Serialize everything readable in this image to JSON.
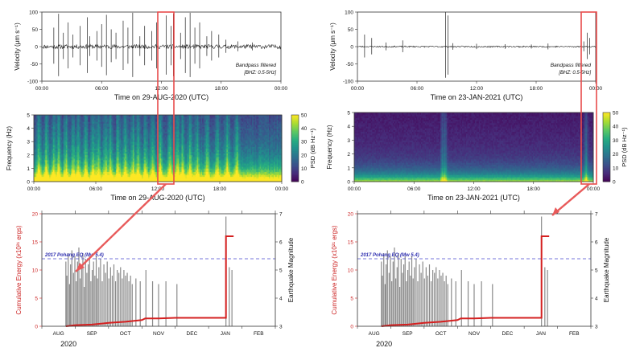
{
  "figure": {
    "accent": "#e85a5a",
    "annotation_color": "#e84b4b"
  },
  "chart_data": [
    {
      "type": "line",
      "panel": "left-seismogram",
      "ylabel": "Velocity (μm s⁻¹)",
      "xlabel": "Time on 29-AUG-2020 (UTC)",
      "ylim": [
        -100,
        100
      ],
      "yticks": [
        "100",
        "50",
        "0",
        "-50",
        "-100"
      ],
      "xticks": [
        "00:00",
        "06:00",
        "12:00",
        "18:00",
        "00:00"
      ],
      "filter_label": [
        "Bandpass filtered",
        "[BHZ: 0.5-5Hz]"
      ],
      "series": [
        {
          "name": "BHZ velocity",
          "base_amplitude": 6,
          "spikes": [
            [
              0.05,
              55
            ],
            [
              0.07,
              95
            ],
            [
              0.09,
              40
            ],
            [
              0.11,
              70
            ],
            [
              0.13,
              35
            ],
            [
              0.16,
              60
            ],
            [
              0.19,
              85
            ],
            [
              0.2,
              30
            ],
            [
              0.23,
              45
            ],
            [
              0.25,
              65
            ],
            [
              0.27,
              92
            ],
            [
              0.29,
              50
            ],
            [
              0.31,
              40
            ],
            [
              0.34,
              75
            ],
            [
              0.36,
              55
            ],
            [
              0.38,
              98
            ],
            [
              0.41,
              30
            ],
            [
              0.43,
              60
            ],
            [
              0.46,
              45
            ],
            [
              0.48,
              70
            ],
            [
              0.52,
              90
            ],
            [
              0.54,
              60
            ],
            [
              0.55,
              95
            ],
            [
              0.58,
              40
            ],
            [
              0.6,
              85
            ],
            [
              0.62,
              98
            ],
            [
              0.64,
              55
            ],
            [
              0.66,
              70
            ],
            [
              0.69,
              30
            ],
            [
              0.71,
              45
            ],
            [
              0.74,
              35
            ],
            [
              0.77,
              20
            ],
            [
              0.82,
              15
            ],
            [
              0.88,
              12
            ]
          ]
        }
      ]
    },
    {
      "type": "heatmap",
      "panel": "left-spectrogram",
      "ylabel": "Frequency (Hz)",
      "xlabel": "Time on 29-AUG-2020 (UTC)",
      "ylim": [
        0,
        5
      ],
      "yticks": [
        "5",
        "4",
        "3",
        "2",
        "1",
        "0"
      ],
      "xticks": [
        "00:00",
        "06:00",
        "12:00",
        "18:00",
        "00:00"
      ],
      "colorbar": {
        "label": "PSD (dB Hz⁻¹)",
        "range": [
          0,
          50
        ],
        "ticks": [
          "50",
          "40",
          "30",
          "20",
          "10",
          "0"
        ]
      },
      "bright_bands": [
        0.02,
        0.05,
        0.08,
        0.1,
        0.13,
        0.16,
        0.18,
        0.21,
        0.24,
        0.26,
        0.29,
        0.31,
        0.34,
        0.37,
        0.4,
        0.42,
        0.45,
        0.48,
        0.51,
        0.55,
        0.58,
        0.6,
        0.63,
        0.66,
        0.7,
        0.74,
        0.78,
        0.82
      ]
    },
    {
      "type": "bar",
      "panel": "left-energy",
      "xlabel": "2020",
      "ylabel": "Cumulative Energy (x10²¹ ergs)",
      "y2label": "Earthquake Magnitude",
      "ylim": [
        0,
        20
      ],
      "yticks": [
        "20",
        "15",
        "10",
        "5",
        "0"
      ],
      "y2lim": [
        3,
        7
      ],
      "y2ticks": [
        "7",
        "6",
        "5",
        "4",
        "3"
      ],
      "xlim": [
        0,
        7
      ],
      "months": [
        "AUG",
        "SEP",
        "OCT",
        "NOV",
        "DEC",
        "JAN",
        "FEB"
      ],
      "reference_line": {
        "label": "2017 Pohang EQ (Mw 5.4)",
        "magnitude": 5.4
      },
      "magnitude_bars": [
        [
          0.72,
          5.3
        ],
        [
          0.75,
          4.8
        ],
        [
          0.79,
          5.6
        ],
        [
          0.83,
          4.5
        ],
        [
          0.86,
          5.2
        ],
        [
          0.9,
          5.7
        ],
        [
          0.95,
          4.9
        ],
        [
          0.99,
          5.5
        ],
        [
          1.03,
          4.6
        ],
        [
          1.07,
          5.3
        ],
        [
          1.11,
          5.8
        ],
        [
          1.15,
          4.7
        ],
        [
          1.19,
          5.1
        ],
        [
          1.23,
          5.6
        ],
        [
          1.27,
          4.4
        ],
        [
          1.31,
          5.4
        ],
        [
          1.35,
          4.9
        ],
        [
          1.39,
          5.2
        ],
        [
          1.43,
          5.5
        ],
        [
          1.47,
          4.6
        ],
        [
          1.51,
          5.0
        ],
        [
          1.55,
          5.3
        ],
        [
          1.59,
          4.8
        ],
        [
          1.63,
          5.5
        ],
        [
          1.67,
          4.7
        ],
        [
          1.71,
          5.1
        ],
        [
          1.76,
          5.4
        ],
        [
          1.81,
          4.6
        ],
        [
          1.86,
          5.2
        ],
        [
          1.91,
          4.9
        ],
        [
          1.96,
          5.3
        ],
        [
          2.01,
          4.7
        ],
        [
          2.06,
          5.1
        ],
        [
          2.11,
          4.8
        ],
        [
          2.16,
          5.2
        ],
        [
          2.21,
          4.6
        ],
        [
          2.26,
          5.0
        ],
        [
          2.31,
          4.9
        ],
        [
          2.36,
          5.1
        ],
        [
          2.41,
          4.7
        ],
        [
          2.46,
          5.0
        ],
        [
          2.51,
          4.8
        ],
        [
          2.56,
          4.9
        ],
        [
          2.61,
          4.6
        ],
        [
          2.66,
          4.8
        ],
        [
          2.71,
          4.5
        ],
        [
          2.82,
          4.7
        ],
        [
          2.95,
          4.6
        ],
        [
          3.12,
          5.0
        ],
        [
          3.32,
          4.6
        ],
        [
          3.5,
          4.5
        ],
        [
          3.72,
          4.6
        ],
        [
          4.05,
          4.5
        ],
        [
          5.52,
          6.9
        ],
        [
          5.62,
          5.1
        ],
        [
          5.7,
          5.0
        ]
      ],
      "cumulative_energy": [
        [
          0.72,
          0.0
        ],
        [
          1.0,
          0.2
        ],
        [
          1.5,
          0.3
        ],
        [
          2.0,
          0.6
        ],
        [
          2.5,
          0.8
        ],
        [
          3.0,
          1.1
        ],
        [
          3.1,
          1.4
        ],
        [
          3.5,
          1.4
        ],
        [
          4.0,
          1.5
        ],
        [
          5.3,
          1.5
        ],
        [
          5.52,
          1.5
        ],
        [
          5.52,
          16.0
        ],
        [
          5.75,
          16.0
        ]
      ]
    },
    {
      "type": "line",
      "panel": "right-seismogram",
      "ylabel": "Velocity (μm s⁻¹)",
      "xlabel": "Time on 23-JAN-2021 (UTC)",
      "ylim": [
        -100,
        100
      ],
      "yticks": [
        "100",
        "50",
        "0",
        "-50",
        "-100"
      ],
      "xticks": [
        "00:00",
        "06:00",
        "12:00",
        "18:00",
        "00:00"
      ],
      "filter_label": [
        "Bandpass filtered",
        "[BHZ: 0.5-5Hz]"
      ],
      "series": [
        {
          "name": "BHZ velocity",
          "base_amplitude": 2,
          "spikes": [
            [
              0.03,
              35
            ],
            [
              0.06,
              25
            ],
            [
              0.12,
              12
            ],
            [
              0.19,
              18
            ],
            [
              0.37,
              100
            ],
            [
              0.38,
              90
            ],
            [
              0.4,
              10
            ],
            [
              0.5,
              8
            ],
            [
              0.62,
              7
            ],
            [
              0.73,
              6
            ],
            [
              0.8,
              9
            ],
            [
              0.95,
              15
            ],
            [
              0.965,
              40
            ],
            [
              0.975,
              25
            ]
          ]
        }
      ]
    },
    {
      "type": "heatmap",
      "panel": "right-spectrogram",
      "ylabel": "Frequency (Hz)",
      "xlabel": "Time on 23-JAN-2021 (UTC)",
      "ylim": [
        0,
        5
      ],
      "yticks": [
        "5",
        "4",
        "3",
        "2",
        "1",
        "0"
      ],
      "xticks": [
        "00:00",
        "06:00",
        "12:00",
        "18:00",
        "00:00"
      ],
      "colorbar": {
        "label": "PSD (dB Hz⁻¹)",
        "range": [
          0,
          50
        ],
        "ticks": [
          "50",
          "40",
          "30",
          "20",
          "10",
          "0"
        ]
      },
      "bright_bands": [
        0.37,
        0.38,
        0.97
      ]
    },
    {
      "type": "bar",
      "panel": "right-energy",
      "xlabel": "2020",
      "ylabel": "Cumulative Energy (x10²¹ ergs)",
      "y2label": "Earthquake Magnitude",
      "ylim": [
        0,
        20
      ],
      "yticks": [
        "20",
        "15",
        "10",
        "5",
        "0"
      ],
      "y2lim": [
        3,
        7
      ],
      "y2ticks": [
        "7",
        "6",
        "5",
        "4",
        "3"
      ],
      "xlim": [
        0,
        7
      ],
      "months": [
        "AUG",
        "SEP",
        "OCT",
        "NOV",
        "DEC",
        "JAN",
        "FEB"
      ],
      "reference_line": {
        "label": "2017 Pohang EQ (Mw 5.4)",
        "magnitude": 5.4
      },
      "magnitude_bars": [
        [
          0.72,
          5.3
        ],
        [
          0.75,
          4.8
        ],
        [
          0.79,
          5.6
        ],
        [
          0.83,
          4.5
        ],
        [
          0.86,
          5.2
        ],
        [
          0.9,
          5.7
        ],
        [
          0.95,
          4.9
        ],
        [
          0.99,
          5.5
        ],
        [
          1.03,
          4.6
        ],
        [
          1.07,
          5.3
        ],
        [
          1.11,
          5.8
        ],
        [
          1.15,
          4.7
        ],
        [
          1.19,
          5.1
        ],
        [
          1.23,
          5.6
        ],
        [
          1.27,
          4.4
        ],
        [
          1.31,
          5.4
        ],
        [
          1.35,
          4.9
        ],
        [
          1.39,
          5.2
        ],
        [
          1.43,
          5.5
        ],
        [
          1.47,
          4.6
        ],
        [
          1.51,
          5.0
        ],
        [
          1.55,
          5.3
        ],
        [
          1.59,
          4.8
        ],
        [
          1.63,
          5.5
        ],
        [
          1.67,
          4.7
        ],
        [
          1.71,
          5.1
        ],
        [
          1.76,
          5.4
        ],
        [
          1.81,
          4.6
        ],
        [
          1.86,
          5.2
        ],
        [
          1.91,
          4.9
        ],
        [
          1.96,
          5.3
        ],
        [
          2.01,
          4.7
        ],
        [
          2.06,
          5.1
        ],
        [
          2.11,
          4.8
        ],
        [
          2.16,
          5.2
        ],
        [
          2.21,
          4.6
        ],
        [
          2.26,
          5.0
        ],
        [
          2.31,
          4.9
        ],
        [
          2.36,
          5.1
        ],
        [
          2.41,
          4.7
        ],
        [
          2.46,
          5.0
        ],
        [
          2.51,
          4.8
        ],
        [
          2.56,
          4.9
        ],
        [
          2.61,
          4.6
        ],
        [
          2.66,
          4.8
        ],
        [
          2.71,
          4.5
        ],
        [
          2.82,
          4.7
        ],
        [
          2.95,
          4.6
        ],
        [
          3.12,
          5.0
        ],
        [
          3.32,
          4.6
        ],
        [
          3.5,
          4.5
        ],
        [
          3.72,
          4.6
        ],
        [
          4.05,
          4.5
        ],
        [
          5.52,
          6.9
        ],
        [
          5.62,
          5.1
        ],
        [
          5.7,
          5.0
        ]
      ],
      "cumulative_energy": [
        [
          0.72,
          0.0
        ],
        [
          1.0,
          0.2
        ],
        [
          1.5,
          0.3
        ],
        [
          2.0,
          0.6
        ],
        [
          2.5,
          0.8
        ],
        [
          3.0,
          1.1
        ],
        [
          3.1,
          1.4
        ],
        [
          3.5,
          1.4
        ],
        [
          4.0,
          1.5
        ],
        [
          5.3,
          1.5
        ],
        [
          5.52,
          1.5
        ],
        [
          5.52,
          16.0
        ],
        [
          5.75,
          16.0
        ]
      ]
    }
  ]
}
